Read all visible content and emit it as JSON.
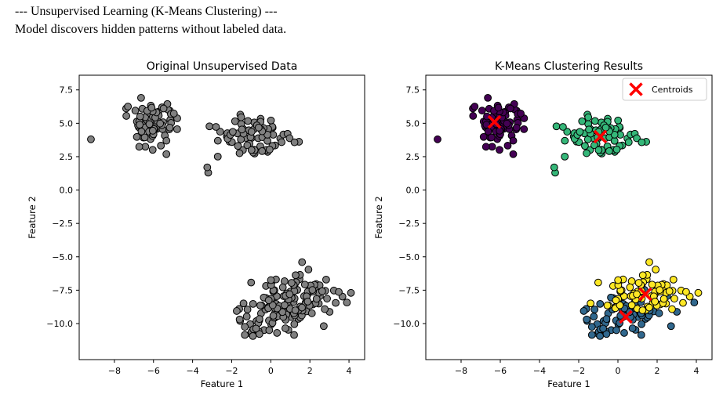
{
  "header": {
    "line1": "--- Unsupervised Learning (K-Means Clustering) ---",
    "line2": "Model discovers hidden patterns without labeled data."
  },
  "colors": {
    "gray_point": "#808080",
    "purple": "#440154",
    "blue": "#31688e",
    "green": "#35b779",
    "yellow": "#fde725",
    "centroid": "#ff0000",
    "edge": "#000000"
  },
  "chart_data": [
    {
      "type": "scatter",
      "title": "Original Unsupervised Data",
      "xlabel": "Feature 1",
      "ylabel": "Feature 2",
      "xlim": [
        -9.8,
        4.8
      ],
      "ylim": [
        -12.7,
        8.6
      ],
      "xticks": [
        -8,
        -6,
        -4,
        -2,
        0,
        2,
        4
      ],
      "yticks": [
        -10.0,
        -7.5,
        -5.0,
        -2.5,
        0.0,
        2.5,
        5.0,
        7.5
      ],
      "clusters": [
        {
          "center": [
            -6.2,
            5.1
          ],
          "spread": [
            0.75,
            0.9
          ],
          "n": 75,
          "color": "gray_point"
        },
        {
          "center": [
            -0.9,
            4.0
          ],
          "spread": [
            0.95,
            0.85
          ],
          "n": 75,
          "color": "gray_point"
        },
        {
          "center": [
            0.4,
            -9.4
          ],
          "spread": [
            1.0,
            0.9
          ],
          "n": 75,
          "color": "gray_point"
        },
        {
          "center": [
            1.5,
            -7.8
          ],
          "spread": [
            1.1,
            0.8
          ],
          "n": 75,
          "color": "gray_point"
        }
      ],
      "extra_points": [
        [
          -9.2,
          3.8
        ],
        [
          -3.2,
          1.3
        ],
        [
          -3.25,
          1.7
        ],
        [
          1.6,
          -5.4
        ],
        [
          4.1,
          -7.7
        ]
      ]
    },
    {
      "type": "scatter",
      "title": "K-Means Clustering Results",
      "xlabel": "Feature 1",
      "ylabel": "Feature 2",
      "xlim": [
        -9.8,
        4.8
      ],
      "ylim": [
        -12.7,
        8.6
      ],
      "xticks": [
        -8,
        -6,
        -4,
        -2,
        0,
        2,
        4
      ],
      "yticks": [
        -10.0,
        -7.5,
        -5.0,
        -2.5,
        0.0,
        2.5,
        5.0,
        7.5
      ],
      "legend": {
        "label": "Centroids",
        "position": "top-right"
      },
      "clusters": [
        {
          "center": [
            -6.2,
            5.1
          ],
          "spread": [
            0.75,
            0.9
          ],
          "n": 75,
          "color": "purple"
        },
        {
          "center": [
            -0.9,
            4.0
          ],
          "spread": [
            0.95,
            0.85
          ],
          "n": 75,
          "color": "green"
        },
        {
          "center": [
            0.4,
            -9.4
          ],
          "spread": [
            1.0,
            0.9
          ],
          "n": 75,
          "color": "blue"
        },
        {
          "center": [
            1.5,
            -7.8
          ],
          "spread": [
            1.1,
            0.8
          ],
          "n": 75,
          "color": "yellow"
        }
      ],
      "extra_points": [
        [
          -9.2,
          3.8,
          "purple"
        ],
        [
          -3.2,
          1.3,
          "green"
        ],
        [
          -3.25,
          1.7,
          "green"
        ],
        [
          1.6,
          -5.4,
          "yellow"
        ],
        [
          4.1,
          -7.7,
          "yellow"
        ]
      ],
      "centroids": [
        [
          -6.3,
          5.1
        ],
        [
          -0.9,
          4.0
        ],
        [
          0.4,
          -9.5
        ],
        [
          1.4,
          -7.8
        ]
      ]
    }
  ]
}
